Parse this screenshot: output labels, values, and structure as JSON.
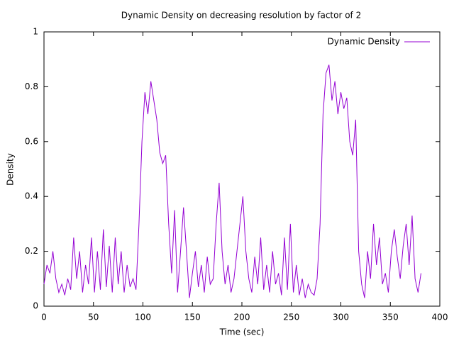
{
  "chart_data": {
    "type": "line",
    "title": "Dynamic Density on decreasing resolution by factor of 2",
    "x_label": "Time (sec)",
    "y_label": "Density",
    "x": [
      0,
      3,
      6,
      9,
      12,
      15,
      18,
      21,
      24,
      27,
      30,
      33,
      36,
      39,
      42,
      45,
      48,
      51,
      54,
      57,
      60,
      63,
      66,
      69,
      72,
      75,
      78,
      81,
      84,
      87,
      90,
      93,
      96,
      99,
      102,
      105,
      108,
      111,
      114,
      117,
      120,
      123,
      126,
      129,
      132,
      135,
      138,
      141,
      144,
      147,
      150,
      153,
      156,
      159,
      162,
      165,
      168,
      171,
      174,
      177,
      180,
      183,
      186,
      189,
      192,
      195,
      198,
      201,
      204,
      207,
      210,
      213,
      216,
      219,
      222,
      225,
      228,
      231,
      234,
      237,
      240,
      243,
      246,
      249,
      252,
      255,
      258,
      261,
      264,
      267,
      270,
      273,
      276,
      279,
      282,
      285,
      288,
      291,
      294,
      297,
      300,
      303,
      306,
      309,
      312,
      315,
      318,
      321,
      324,
      327,
      330,
      333,
      336,
      339,
      342,
      345,
      348,
      351,
      354,
      357,
      360,
      363,
      366,
      369,
      372,
      375,
      378,
      381
    ],
    "series": [
      {
        "name": "Dynamic Density",
        "color": "#9400d3",
        "values": [
          0.08,
          0.15,
          0.12,
          0.2,
          0.1,
          0.05,
          0.08,
          0.04,
          0.1,
          0.06,
          0.25,
          0.1,
          0.2,
          0.05,
          0.15,
          0.08,
          0.25,
          0.05,
          0.2,
          0.06,
          0.28,
          0.07,
          0.22,
          0.05,
          0.25,
          0.08,
          0.2,
          0.05,
          0.15,
          0.07,
          0.1,
          0.06,
          0.3,
          0.6,
          0.78,
          0.7,
          0.82,
          0.75,
          0.68,
          0.56,
          0.52,
          0.55,
          0.3,
          0.12,
          0.35,
          0.05,
          0.2,
          0.36,
          0.2,
          0.03,
          0.12,
          0.2,
          0.07,
          0.15,
          0.05,
          0.18,
          0.08,
          0.1,
          0.3,
          0.45,
          0.2,
          0.08,
          0.15,
          0.05,
          0.1,
          0.2,
          0.3,
          0.4,
          0.2,
          0.1,
          0.05,
          0.18,
          0.08,
          0.25,
          0.06,
          0.15,
          0.05,
          0.2,
          0.08,
          0.12,
          0.04,
          0.25,
          0.06,
          0.3,
          0.05,
          0.15,
          0.04,
          0.1,
          0.03,
          0.08,
          0.05,
          0.04,
          0.1,
          0.3,
          0.7,
          0.85,
          0.88,
          0.75,
          0.82,
          0.7,
          0.78,
          0.72,
          0.76,
          0.6,
          0.55,
          0.68,
          0.2,
          0.08,
          0.03,
          0.2,
          0.1,
          0.3,
          0.15,
          0.25,
          0.08,
          0.12,
          0.05,
          0.2,
          0.28,
          0.18,
          0.1,
          0.22,
          0.3,
          0.15,
          0.33,
          0.1,
          0.05,
          0.12
        ]
      }
    ],
    "xlim": [
      0,
      400
    ],
    "xticks": [
      0,
      50,
      100,
      150,
      200,
      250,
      300,
      350,
      400
    ],
    "ylim": [
      0,
      1
    ],
    "yticks": [
      0,
      0.2,
      0.4,
      0.6,
      0.8,
      1
    ],
    "legend": "top-right"
  }
}
